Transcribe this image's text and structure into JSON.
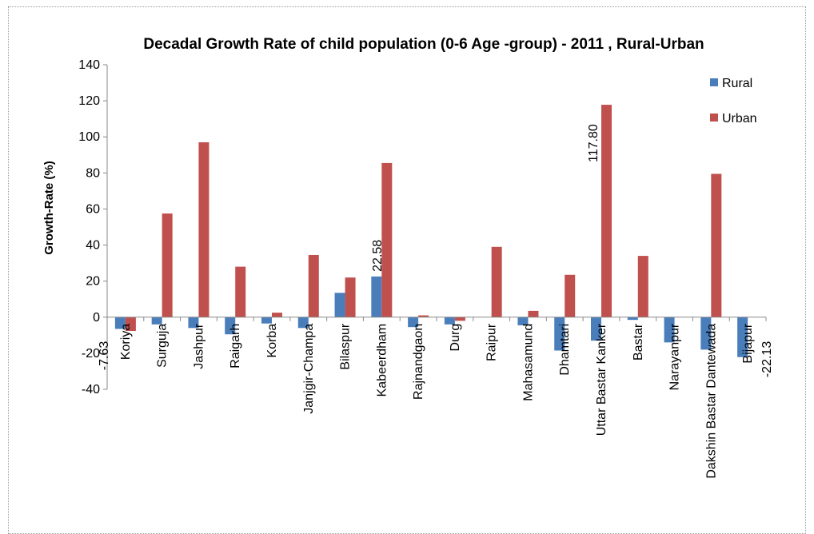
{
  "chart_data": {
    "type": "bar",
    "title": "Decadal Growth Rate of child population (0-6 Age -group) - 2011 , Rural-Urban",
    "ylabel": "Growth-Rate (%)",
    "xlabel": "",
    "ylim": [
      -40,
      140
    ],
    "yticks": [
      140,
      120,
      100,
      80,
      60,
      40,
      20,
      0,
      -20,
      -40
    ],
    "grid": false,
    "legend_position": "top-right",
    "categories": [
      "Koriya",
      "Surguja",
      "Jashpur",
      "Raigarh",
      "Korba",
      "Janjgir-Champa",
      "Bilaspur",
      "Kabeerdham",
      "Rajnandgaon",
      "Durg",
      "Raipur",
      "Mahasamund",
      "Dhamtari",
      "Uttar Bastar Kanker",
      "Bastar",
      "Narayanpur",
      "Dakshin Bastar Dantewada",
      "Bijapur"
    ],
    "series": [
      {
        "name": "Rural",
        "color": "#4a7ebb",
        "values": [
          -6.5,
          -4,
          -6,
          -9.5,
          -3.5,
          -6,
          13.5,
          22.58,
          -5.5,
          -4,
          0,
          -4.5,
          -18.5,
          -13,
          -1.5,
          -14,
          -18,
          -22.13
        ]
      },
      {
        "name": "Urban",
        "color": "#c0504d",
        "values": [
          -7.63,
          57.5,
          97,
          28,
          2.5,
          34.5,
          22,
          85.5,
          1,
          -2,
          39,
          3.5,
          23.5,
          117.8,
          34,
          0,
          79.5,
          0
        ]
      }
    ],
    "data_labels": [
      {
        "category": "Koriya",
        "series": "Urban",
        "text": "-7.63"
      },
      {
        "category": "Kabeerdham",
        "series": "Rural",
        "text": "22.58"
      },
      {
        "category": "Uttar Bastar Kanker",
        "series": "Urban",
        "text": "117.80"
      },
      {
        "category": "Bijapur",
        "series": "Rural",
        "text": "-22.13"
      }
    ]
  }
}
